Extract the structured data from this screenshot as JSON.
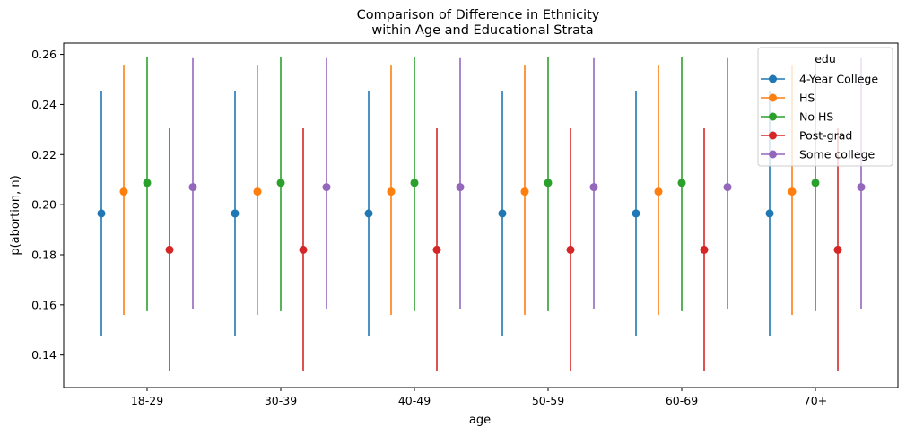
{
  "chart_data": {
    "type": "scatter",
    "subtype": "point-with-error-bars",
    "title_line1": "Comparison of Difference in Ethnicity",
    "title_line2": "within Age and Educational Strata",
    "xlabel": "age",
    "ylabel": "p(abortion, n)",
    "categories": [
      "18-29",
      "30-39",
      "40-49",
      "50-59",
      "60-69",
      "70+"
    ],
    "ylim": [
      0.127,
      0.2645
    ],
    "yticks": [
      0.14,
      0.16,
      0.18,
      0.2,
      0.22,
      0.24,
      0.26
    ],
    "ytick_labels": [
      "0.14",
      "0.16",
      "0.18",
      "0.20",
      "0.22",
      "0.24",
      "0.26"
    ],
    "grid": false,
    "legend": {
      "title": "edu",
      "placement": "top-right"
    },
    "series": [
      {
        "name": "4-Year College",
        "color": "#1f77b4",
        "values": [
          0.1965,
          0.1965,
          0.1965,
          0.1965,
          0.1965,
          0.1965
        ],
        "lower": [
          0.1475,
          0.1475,
          0.1475,
          0.1475,
          0.1475,
          0.1475
        ],
        "upper": [
          0.2455,
          0.2455,
          0.2455,
          0.2455,
          0.2455,
          0.2455
        ]
      },
      {
        "name": "HS",
        "color": "#ff7f0e",
        "values": [
          0.2052,
          0.2052,
          0.2052,
          0.2052,
          0.2052,
          0.2052
        ],
        "lower": [
          0.156,
          0.156,
          0.156,
          0.156,
          0.156,
          0.156
        ],
        "upper": [
          0.2555,
          0.2555,
          0.2555,
          0.2555,
          0.2555,
          0.2555
        ]
      },
      {
        "name": "No HS",
        "color": "#2ca02c",
        "values": [
          0.2087,
          0.2087,
          0.2087,
          0.2087,
          0.2087,
          0.2087
        ],
        "lower": [
          0.1575,
          0.1575,
          0.1575,
          0.1575,
          0.1575,
          0.1575
        ],
        "upper": [
          0.259,
          0.259,
          0.259,
          0.259,
          0.259,
          0.259
        ]
      },
      {
        "name": "Post-grad",
        "color": "#d62728",
        "values": [
          0.182,
          0.182,
          0.182,
          0.182,
          0.182,
          0.182
        ],
        "lower": [
          0.1335,
          0.1335,
          0.1335,
          0.1335,
          0.1335,
          0.1335
        ],
        "upper": [
          0.2305,
          0.2305,
          0.2305,
          0.2305,
          0.2305,
          0.2305
        ]
      },
      {
        "name": "Some college",
        "color": "#9467bd",
        "values": [
          0.207,
          0.207,
          0.207,
          0.207,
          0.207,
          0.207
        ],
        "lower": [
          0.1585,
          0.1585,
          0.1585,
          0.1585,
          0.1585,
          0.1585
        ],
        "upper": [
          0.2585,
          0.2585,
          0.2585,
          0.2585,
          0.2585,
          0.2585
        ]
      }
    ]
  }
}
